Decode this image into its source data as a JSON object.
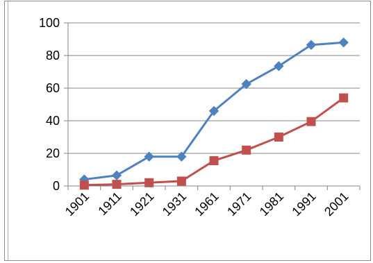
{
  "chart_data": {
    "type": "line",
    "title": "",
    "xlabel": "",
    "ylabel": "",
    "categories": [
      "1901",
      "1911",
      "1921",
      "1931",
      "1961",
      "1971",
      "1981",
      "1991",
      "2001"
    ],
    "ylim": [
      0,
      100
    ],
    "yticks": [
      "0",
      "20",
      "40",
      "60",
      "80",
      "100"
    ],
    "grid": true,
    "legend": "none",
    "series": [
      {
        "color": "#4f81bd",
        "marker": "diamond",
        "values": [
          4,
          6.5,
          18,
          18,
          46,
          62.5,
          73.5,
          86.5,
          88
        ]
      },
      {
        "color": "#c0504d",
        "marker": "square",
        "values": [
          0.5,
          1,
          2,
          3,
          15.5,
          22,
          30,
          39.5,
          54
        ]
      }
    ]
  }
}
